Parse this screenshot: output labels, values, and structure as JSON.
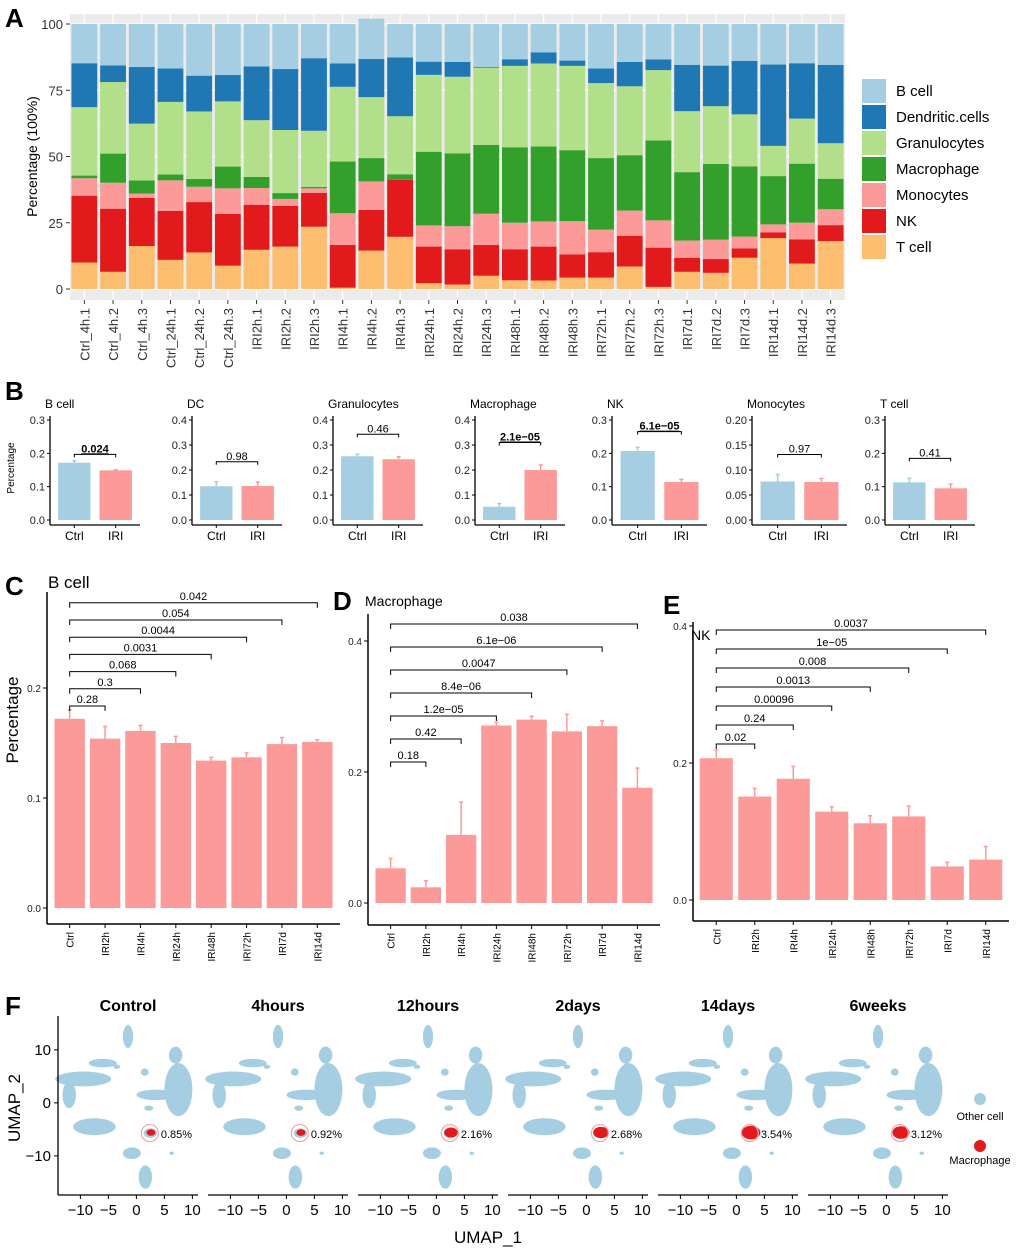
{
  "figure": {
    "panel_labels": [
      "A",
      "B",
      "C",
      "D",
      "E",
      "F"
    ]
  },
  "colors": {
    "B cell": "#a6cee3",
    "Dendritic.cells": "#1f78b4",
    "Granulocytes": "#b2df8a",
    "Macrophage": "#33a02c",
    "Monocytes": "#fb9a99",
    "NK": "#e31a1c",
    "T cell": "#fdbf6f",
    "ctrl_bar": "#a6cee3",
    "iri_bar": "#fb9a99",
    "panel_bg": "#ebebeb",
    "umap_other": "#a6cee3",
    "umap_macrophage": "#e31a1c"
  },
  "chart_data": [
    {
      "id": "A",
      "type": "bar",
      "stacked": true,
      "title": "",
      "xlabel": "",
      "ylabel": "Percentage (100%)",
      "ylim": [
        0,
        100
      ],
      "yticks": [
        "0",
        "25",
        "50",
        "75",
        "100"
      ],
      "grid": true,
      "legend": "right",
      "categories": [
        "Ctrl_4h.1",
        "Ctrl_4h.2",
        "Ctrl_4h.3",
        "Ctrl_24h.1",
        "Ctrl_24h.2",
        "Ctrl_24h.3",
        "IRI2h.1",
        "IRI2h.2",
        "IRI2h.3",
        "IRI4h.1",
        "IRI4h.2",
        "IRI4h.3",
        "IRI24h.1",
        "IRI24h.2",
        "IRI24h.3",
        "IRI48h.1",
        "IRI48h.2",
        "IRI48h.3",
        "IRI72h.1",
        "IRI72h.2",
        "IRI72h.3",
        "IRI7d.1",
        "IRI7d.2",
        "IRI7d.3",
        "IRI14d.1",
        "IRI14d.2",
        "IRI14d.3"
      ],
      "series": [
        {
          "name": "T cell",
          "values": [
            10.0,
            6.5,
            16.2,
            11.0,
            13.8,
            8.8,
            14.8,
            16.0,
            23.5,
            0.5,
            14.5,
            19.7,
            2.2,
            1.7,
            5.0,
            3.3,
            3.2,
            4.3,
            4.3,
            8.5,
            0.8,
            6.5,
            6.1,
            11.8,
            19.2,
            9.6,
            18.1
          ]
        },
        {
          "name": "NK",
          "values": [
            25.2,
            23.8,
            18.2,
            18.5,
            19.0,
            19.5,
            17.0,
            15.4,
            12.8,
            16.1,
            15.3,
            21.5,
            13.8,
            13.3,
            11.6,
            11.7,
            12.8,
            8.8,
            9.6,
            11.6,
            14.8,
            5.3,
            5.2,
            3.5,
            2.2,
            9.1,
            6.0
          ]
        },
        {
          "name": "Monocytes",
          "values": [
            6.6,
            9.8,
            1.6,
            11.5,
            5.8,
            9.7,
            6.3,
            2.6,
            1.7,
            12.0,
            10.8,
            0,
            8.0,
            8.7,
            11.8,
            10.0,
            9.5,
            12.5,
            8.5,
            9.5,
            10.3,
            6.5,
            7.3,
            4.5,
            3.0,
            6.3,
            6.0
          ]
        },
        {
          "name": "Macrophage",
          "values": [
            1.0,
            11.0,
            5.0,
            2.2,
            2.9,
            8.2,
            4.2,
            2.2,
            0.5,
            19.5,
            8.8,
            2.1,
            27.8,
            27.5,
            26.0,
            28.5,
            28.3,
            26.8,
            27.0,
            20.9,
            30.2,
            25.8,
            28.6,
            26.5,
            18.2,
            22.3,
            11.5
          ]
        },
        {
          "name": "Granulocytes",
          "values": [
            25.8,
            27.0,
            21.4,
            27.4,
            25.5,
            24.6,
            21.4,
            23.8,
            21.2,
            28.2,
            23.0,
            21.9,
            29.0,
            28.9,
            29.0,
            30.7,
            31.3,
            31.8,
            28.3,
            26.0,
            26.5,
            23.0,
            21.8,
            19.6,
            11.4,
            17.0,
            13.4
          ]
        },
        {
          "name": "Dendritic.cells",
          "values": [
            16.6,
            6.3,
            21.4,
            12.6,
            13.5,
            10.0,
            20.3,
            23.0,
            27.4,
            8.8,
            14.4,
            22.2,
            5.0,
            5.6,
            0.3,
            2.5,
            4.2,
            2.0,
            5.5,
            9.2,
            4.0,
            17.5,
            15.3,
            20.2,
            30.7,
            20.9,
            29.6
          ]
        },
        {
          "name": "B cell",
          "values": [
            14.8,
            15.6,
            16.2,
            16.8,
            19.5,
            19.2,
            16.0,
            17.0,
            12.9,
            14.9,
            15.2,
            12.6,
            14.2,
            14.3,
            16.3,
            13.3,
            10.7,
            13.8,
            16.8,
            14.3,
            13.4,
            15.4,
            15.7,
            13.9,
            15.3,
            14.8,
            15.4
          ]
        }
      ]
    },
    {
      "id": "B",
      "type": "bar",
      "ylabel": "Percentage",
      "subplots": [
        {
          "title": "B cell",
          "categories": [
            "Ctrl",
            "IRI"
          ],
          "values": [
            0.172,
            0.149
          ],
          "errors": [
            0.006,
            0.002
          ],
          "ylim": [
            0,
            0.3
          ],
          "yticks": [
            "0.0",
            "0.1",
            "0.2",
            "0.3"
          ],
          "pvalue": "0.024",
          "significant": true
        },
        {
          "title": "DC",
          "categories": [
            "Ctrl",
            "IRI"
          ],
          "values": [
            0.135,
            0.136
          ],
          "errors": [
            0.018,
            0.016
          ],
          "ylim": [
            0,
            0.4
          ],
          "yticks": [
            "0.0",
            "0.1",
            "0.2",
            "0.3",
            "0.4"
          ],
          "pvalue": "0.98",
          "significant": false
        },
        {
          "title": "Granulocytes",
          "categories": [
            "Ctrl",
            "IRI"
          ],
          "values": [
            0.255,
            0.243
          ],
          "errors": [
            0.008,
            0.01
          ],
          "ylim": [
            0,
            0.4
          ],
          "yticks": [
            "0.0",
            "0.1",
            "0.2",
            "0.3",
            "0.4"
          ],
          "pvalue": "0.46",
          "significant": false
        },
        {
          "title": "Macrophage",
          "categories": [
            "Ctrl",
            "IRI"
          ],
          "values": [
            0.053,
            0.2
          ],
          "errors": [
            0.013,
            0.02
          ],
          "ylim": [
            0,
            0.4
          ],
          "yticks": [
            "0.0",
            "0.1",
            "0.2",
            "0.3",
            "0.4"
          ],
          "pvalue": "2.1e−05",
          "significant": true
        },
        {
          "title": "NK",
          "categories": [
            "Ctrl",
            "IRI"
          ],
          "values": [
            0.207,
            0.114
          ],
          "errors": [
            0.011,
            0.008
          ],
          "ylim": [
            0,
            0.3
          ],
          "yticks": [
            "0.0",
            "0.1",
            "0.2",
            "0.3"
          ],
          "pvalue": "6.1e−05",
          "significant": true
        },
        {
          "title": "Monocytes",
          "categories": [
            "Ctrl",
            "IRI"
          ],
          "values": [
            0.077,
            0.076
          ],
          "errors": [
            0.014,
            0.007
          ],
          "ylim": [
            0,
            0.2
          ],
          "yticks": [
            "0.00",
            "0.05",
            "0.10",
            "0.15",
            "0.20"
          ],
          "pvalue": "0.97",
          "significant": false
        },
        {
          "title": "T cell",
          "categories": [
            "Ctrl",
            "IRI"
          ],
          "values": [
            0.113,
            0.095
          ],
          "errors": [
            0.012,
            0.013
          ],
          "ylim": [
            0,
            0.3
          ],
          "yticks": [
            "0.0",
            "0.1",
            "0.2",
            "0.3"
          ],
          "pvalue": "0.41",
          "significant": false
        }
      ]
    },
    {
      "id": "C",
      "type": "bar",
      "title": "B cell",
      "ylabel": "Percentage",
      "ylim": [
        0,
        0.2
      ],
      "yticks": [
        "0.0",
        "0.1",
        "0.2"
      ],
      "categories": [
        "Ctrl",
        "IRI2h",
        "IRI4h",
        "IRI24h",
        "IRI48h",
        "IRI72h",
        "IRI7d",
        "IRI14d"
      ],
      "values": [
        0.172,
        0.154,
        0.161,
        0.15,
        0.134,
        0.137,
        0.149,
        0.151
      ],
      "errors": [
        0.008,
        0.011,
        0.005,
        0.006,
        0.003,
        0.004,
        0.006,
        0.002
      ],
      "comparisons": [
        {
          "vs": "IRI2h",
          "p": "0.28"
        },
        {
          "vs": "IRI4h",
          "p": "0.3"
        },
        {
          "vs": "IRI24h",
          "p": "0.068"
        },
        {
          "vs": "IRI48h",
          "p": "0.0031"
        },
        {
          "vs": "IRI72h",
          "p": "0.0044"
        },
        {
          "vs": "IRI7d",
          "p": "0.054"
        },
        {
          "vs": "IRI14d",
          "p": "0.042"
        }
      ]
    },
    {
      "id": "D",
      "type": "bar",
      "title": "Macrophage",
      "ylabel": "",
      "ylim": [
        0,
        0.4
      ],
      "yticks": [
        "0.0",
        "0.2",
        "0.4"
      ],
      "categories": [
        "Ctrl",
        "IRI2h",
        "IRI4h",
        "IRI24h",
        "IRI48h",
        "IRI72h",
        "IRI7d",
        "IRI14d"
      ],
      "values": [
        0.053,
        0.024,
        0.104,
        0.271,
        0.28,
        0.262,
        0.27,
        0.176
      ],
      "errors": [
        0.015,
        0.01,
        0.05,
        0.005,
        0.005,
        0.026,
        0.008,
        0.03
      ],
      "comparisons": [
        {
          "vs": "IRI2h",
          "p": "0.18"
        },
        {
          "vs": "IRI4h",
          "p": "0.42"
        },
        {
          "vs": "IRI24h",
          "p": "1.2e−05"
        },
        {
          "vs": "IRI48h",
          "p": "8.4e−06"
        },
        {
          "vs": "IRI72h",
          "p": "0.0047"
        },
        {
          "vs": "IRI7d",
          "p": "6.1e−06"
        },
        {
          "vs": "IRI14d",
          "p": "0.038"
        }
      ]
    },
    {
      "id": "E",
      "type": "bar",
      "title": "NK",
      "ylabel": "",
      "ylim": [
        0,
        0.4
      ],
      "yticks": [
        "0.0",
        "0.2",
        "0.4"
      ],
      "categories": [
        "Ctrl",
        "IRI2h",
        "IRI4h",
        "IRI24h",
        "IRI48h",
        "IRI72h",
        "IRI7d",
        "IRI14d"
      ],
      "values": [
        0.207,
        0.151,
        0.177,
        0.129,
        0.112,
        0.122,
        0.049,
        0.059
      ],
      "errors": [
        0.012,
        0.012,
        0.018,
        0.007,
        0.011,
        0.015,
        0.006,
        0.019
      ],
      "comparisons": [
        {
          "vs": "IRI2h",
          "p": "0.02"
        },
        {
          "vs": "IRI4h",
          "p": "0.24"
        },
        {
          "vs": "IRI24h",
          "p": "0.00096"
        },
        {
          "vs": "IRI48h",
          "p": "0.0013"
        },
        {
          "vs": "IRI72h",
          "p": "0.008"
        },
        {
          "vs": "IRI7d",
          "p": "1e−05"
        },
        {
          "vs": "IRI14d",
          "p": "0.0037"
        }
      ]
    },
    {
      "id": "F",
      "type": "scatter",
      "xlabel": "UMAP_1",
      "ylabel": "UMAP_2",
      "xlim": [
        -14,
        11
      ],
      "ylim": [
        -17,
        16
      ],
      "xticks": [
        "−10",
        "−5",
        "0",
        "5",
        "10"
      ],
      "yticks": [
        "−10",
        "0",
        "10"
      ],
      "legend": "right",
      "legend_entries": [
        "Other cell",
        "Macrophage"
      ],
      "panels": [
        {
          "title": "Control",
          "macrophage_pct": "0.85%"
        },
        {
          "title": "4hours",
          "macrophage_pct": "0.92%"
        },
        {
          "title": "12hours",
          "macrophage_pct": "2.16%"
        },
        {
          "title": "2days",
          "macrophage_pct": "2.68%"
        },
        {
          "title": "14days",
          "macrophage_pct": "3.54%"
        },
        {
          "title": "6weeks",
          "macrophage_pct": "3.12%"
        }
      ]
    }
  ]
}
